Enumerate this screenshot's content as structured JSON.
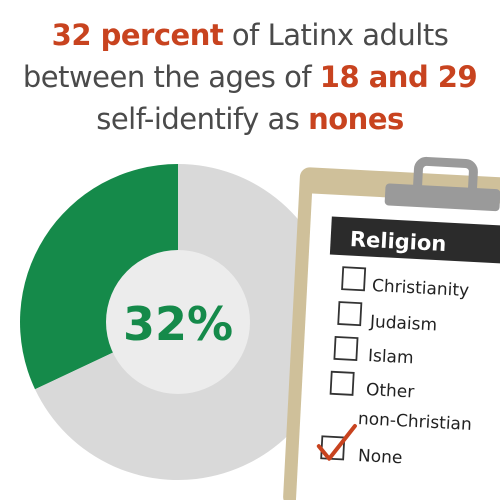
{
  "headline": {
    "line1_highlight": "32 percent",
    "line1_rest": " of Latinx adults",
    "line2_start": "between the ages of ",
    "line2_highlight": "18 and 29",
    "line3_start": "self-identify as ",
    "line3_highlight": "nones"
  },
  "colors": {
    "accent": "#c8431f",
    "slice_highlight": "#158a4a",
    "slice_rest": "#d9d9d9",
    "center": "#ececec",
    "text": "#4a4a4a"
  },
  "chart_data": {
    "type": "pie",
    "slices": [
      {
        "value": 32
      },
      {
        "value": 68
      }
    ],
    "center_label": "32%"
  },
  "clipboard": {
    "title": "Religion",
    "options": [
      {
        "label": "Christianity",
        "checked": false
      },
      {
        "label": "Judaism",
        "checked": false
      },
      {
        "label": "Islam",
        "checked": false
      },
      {
        "label": "Other",
        "checked": false
      },
      {
        "label": "non-Christian",
        "checked": false
      },
      {
        "label": "None",
        "checked": true
      }
    ]
  }
}
